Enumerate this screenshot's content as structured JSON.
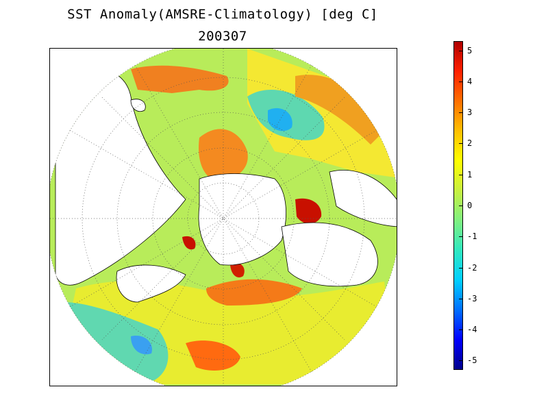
{
  "title": {
    "line1": "SST Anomaly(AMSRE-Climatology) [deg C]",
    "line2": "200307"
  },
  "colorbar": {
    "min": -5.3,
    "max": 5.3,
    "ticks": [
      {
        "value": 5,
        "label": "5"
      },
      {
        "value": 4,
        "label": "4"
      },
      {
        "value": 3,
        "label": "3"
      },
      {
        "value": 2,
        "label": "2"
      },
      {
        "value": 1,
        "label": "1"
      },
      {
        "value": 0,
        "label": "0"
      },
      {
        "value": -1,
        "label": "-1"
      },
      {
        "value": -2,
        "label": "-2"
      },
      {
        "value": -3,
        "label": "-3"
      },
      {
        "value": -4,
        "label": "-4"
      },
      {
        "value": -5,
        "label": "-5"
      }
    ],
    "colors": [
      "#00008b",
      "#0000ff",
      "#0070ff",
      "#00d0ff",
      "#30e8c0",
      "#80f080",
      "#c8f040",
      "#ffff00",
      "#ffc000",
      "#ff7000",
      "#ff2000",
      "#b00000"
    ]
  },
  "map": {
    "projection": "north-polar-stereographic",
    "grid": "dotted",
    "land_color": "#ffffff",
    "coastline_color": "#000000"
  }
}
